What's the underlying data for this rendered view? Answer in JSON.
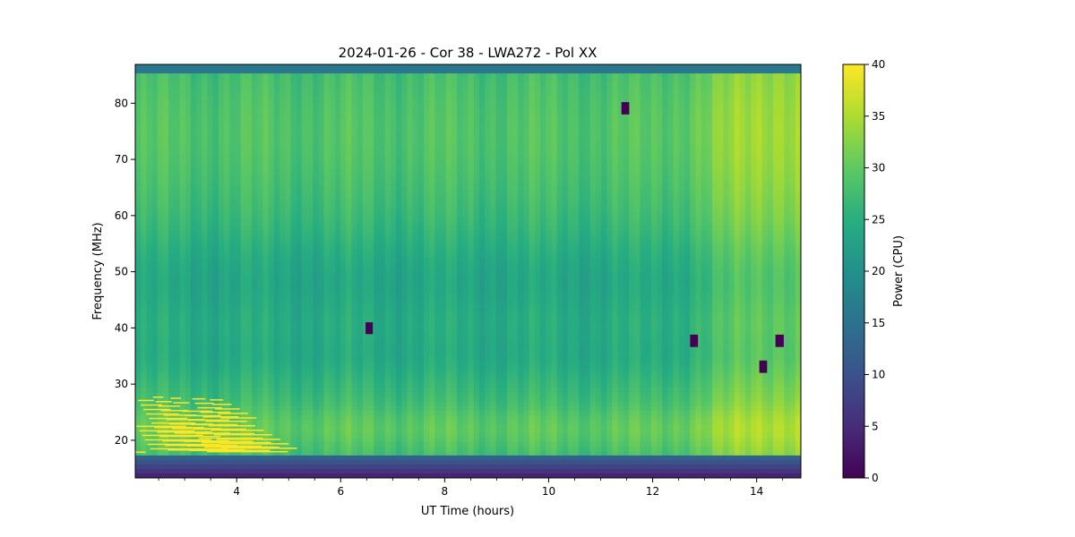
{
  "chart_data": {
    "type": "heatmap",
    "title": "2024-01-26 - Cor 38 - LWA272 - Pol XX",
    "xlabel": "UT Time (hours)",
    "ylabel": "Frequency (MHz)",
    "colorbar_label": "Power (CPU)",
    "colormap": "viridis",
    "xlim": [
      2.05,
      14.85
    ],
    "ylim": [
      13.3,
      86.9
    ],
    "clim": [
      0,
      40
    ],
    "xticks": [
      4,
      6,
      8,
      10,
      12,
      14
    ],
    "xtick_labels": [
      "4",
      "6",
      "8",
      "10",
      "12",
      "14"
    ],
    "yticks": [
      20,
      30,
      40,
      50,
      60,
      70,
      80
    ],
    "ytick_labels": [
      "20",
      "30",
      "40",
      "50",
      "60",
      "70",
      "80"
    ],
    "cbar_ticks": [
      0,
      5,
      10,
      15,
      20,
      25,
      30,
      35,
      40
    ],
    "cbar_tick_labels": [
      "0",
      "5",
      "10",
      "15",
      "20",
      "25",
      "30",
      "35",
      "40"
    ],
    "masked_blocks": [
      {
        "t0": 6.48,
        "t1": 6.62,
        "f0": 38.9,
        "f1": 41.0,
        "value": 0
      },
      {
        "t0": 11.4,
        "t1": 11.55,
        "f0": 78.0,
        "f1": 80.2,
        "value": 0
      },
      {
        "t0": 12.72,
        "t1": 12.87,
        "f0": 36.6,
        "f1": 38.8,
        "value": 0
      },
      {
        "t0": 14.05,
        "t1": 14.2,
        "f0": 32.0,
        "f1": 34.2,
        "value": 0
      },
      {
        "t0": 14.36,
        "t1": 14.52,
        "f0": 36.6,
        "f1": 38.8,
        "value": 0
      }
    ]
  }
}
